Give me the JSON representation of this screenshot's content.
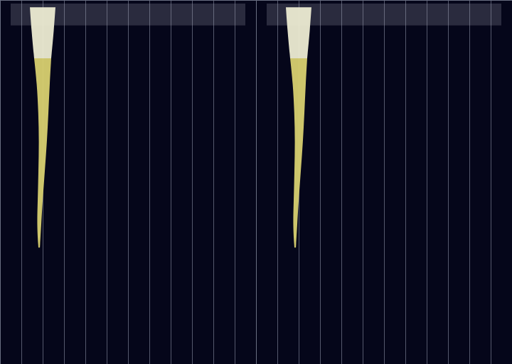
{
  "chart_data": [
    {
      "type": "area",
      "grid": true,
      "tick_labels": false,
      "xlim": [
        0,
        12
      ],
      "xticks": [
        1,
        2,
        3,
        4,
        5,
        6,
        7,
        8,
        9,
        10,
        11
      ],
      "ylim": [
        0,
        100
      ],
      "series": [
        {
          "color": "#9a9aaa",
          "y": [
            1,
            7
          ],
          "lower": [
            0.5,
            0.5
          ],
          "upper": [
            11.5,
            11.5
          ]
        },
        {
          "color": "#ecebd2",
          "y": [
            2,
            8,
            16
          ],
          "lower": [
            1.4,
            1.47,
            1.6
          ],
          "upper": [
            2.6,
            2.53,
            2.4
          ]
        },
        {
          "color": "#d8d070",
          "y": [
            16,
            23,
            31,
            39,
            47,
            55,
            62,
            68
          ],
          "lower": [
            1.6,
            1.73,
            1.8,
            1.83,
            1.8,
            1.77,
            1.73,
            1.8
          ],
          "upper": [
            2.4,
            2.33,
            2.27,
            2.2,
            2.1,
            2.0,
            1.93,
            1.87
          ]
        }
      ]
    },
    {
      "type": "area",
      "grid": true,
      "tick_labels": false,
      "xlim": [
        0,
        12
      ],
      "xticks": [
        1,
        2,
        3,
        4,
        5,
        6,
        7,
        8,
        9,
        10,
        11
      ],
      "ylim": [
        0,
        100
      ],
      "series": [
        {
          "color": "#9a9aaa",
          "y": [
            1,
            7
          ],
          "lower": [
            0.5,
            0.5
          ],
          "upper": [
            11.5,
            11.5
          ]
        },
        {
          "color": "#ecebd2",
          "y": [
            2,
            8,
            16
          ],
          "lower": [
            1.4,
            1.47,
            1.6
          ],
          "upper": [
            2.6,
            2.53,
            2.4
          ]
        },
        {
          "color": "#d8d070",
          "y": [
            16,
            23,
            31,
            39,
            47,
            55,
            62,
            68
          ],
          "lower": [
            1.6,
            1.73,
            1.8,
            1.83,
            1.8,
            1.77,
            1.73,
            1.8
          ],
          "upper": [
            2.4,
            2.33,
            2.27,
            2.2,
            2.1,
            2.0,
            1.93,
            1.87
          ]
        }
      ]
    }
  ]
}
